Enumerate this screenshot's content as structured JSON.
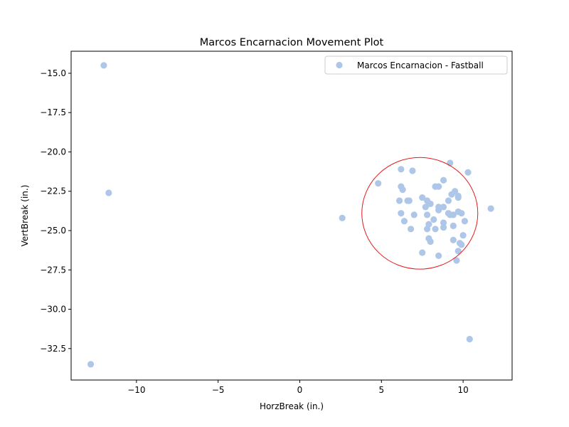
{
  "chart_data": {
    "type": "scatter",
    "title": "Marcos Encarnacion Movement Plot",
    "xlabel": "HorzBreak (in.)",
    "ylabel": "VertBreak (in.)",
    "xlim": [
      -14,
      13
    ],
    "ylim": [
      -34.5,
      -13.6
    ],
    "xticks": [
      -10,
      -5,
      0,
      5,
      10
    ],
    "yticks": [
      -15.0,
      -17.5,
      -20.0,
      -22.5,
      -25.0,
      -27.5,
      -30.0,
      -32.5
    ],
    "xtick_labels": [
      "−10",
      "−5",
      "0",
      "5",
      "10"
    ],
    "ytick_labels": [
      "−15.0",
      "−17.5",
      "−20.0",
      "−22.5",
      "−25.0",
      "−27.5",
      "−30.0",
      "−32.5"
    ],
    "grid": false,
    "legend_position": "upper right",
    "series": [
      {
        "name": "Marcos Encarnacion - Fastball",
        "color": "#aec7e8",
        "x": [
          -12.0,
          -11.7,
          -12.8,
          2.6,
          4.8,
          6.2,
          6.9,
          6.2,
          6.3,
          6.1,
          6.6,
          6.7,
          7.5,
          7.7,
          7.8,
          7.9,
          8.0,
          8.3,
          8.5,
          8.5,
          8.8,
          9.1,
          9.2,
          9.3,
          9.5,
          9.7,
          9.7,
          8.8,
          10.3,
          6.2,
          6.4,
          7.0,
          7.8,
          7.9,
          8.2,
          8.5,
          8.8,
          8.8,
          9.1,
          9.2,
          9.4,
          9.4,
          9.7,
          9.9,
          10.1,
          6.8,
          7.8,
          8.3,
          10.0,
          7.9,
          8.0,
          9.4,
          9.8,
          9.9,
          7.5,
          8.5,
          9.6,
          9.7,
          11.7,
          10.4
        ],
        "y": [
          -14.5,
          -22.6,
          -33.5,
          -24.2,
          -22.0,
          -21.1,
          -21.2,
          -22.2,
          -22.4,
          -23.1,
          -23.1,
          -23.1,
          -22.9,
          -23.5,
          -23.1,
          -23.3,
          -23.3,
          -22.2,
          -22.2,
          -23.5,
          -21.8,
          -23.1,
          -20.7,
          -22.7,
          -22.5,
          -22.9,
          -22.8,
          -23.5,
          -21.3,
          -23.9,
          -24.4,
          -24.0,
          -24.0,
          -24.6,
          -24.3,
          -23.7,
          -24.5,
          -24.8,
          -23.9,
          -24.0,
          -24.0,
          -24.7,
          -23.8,
          -23.9,
          -24.4,
          -24.9,
          -24.9,
          -24.9,
          -25.3,
          -25.5,
          -25.7,
          -25.6,
          -25.8,
          -25.9,
          -26.4,
          -26.6,
          -26.9,
          -26.3,
          -23.6,
          -31.9
        ]
      }
    ],
    "annotations": [
      {
        "type": "circle",
        "center": [
          7.35,
          -23.9
        ],
        "rx_data": 3.55,
        "ry_data": 3.55,
        "color": "#e41a1c"
      }
    ]
  }
}
